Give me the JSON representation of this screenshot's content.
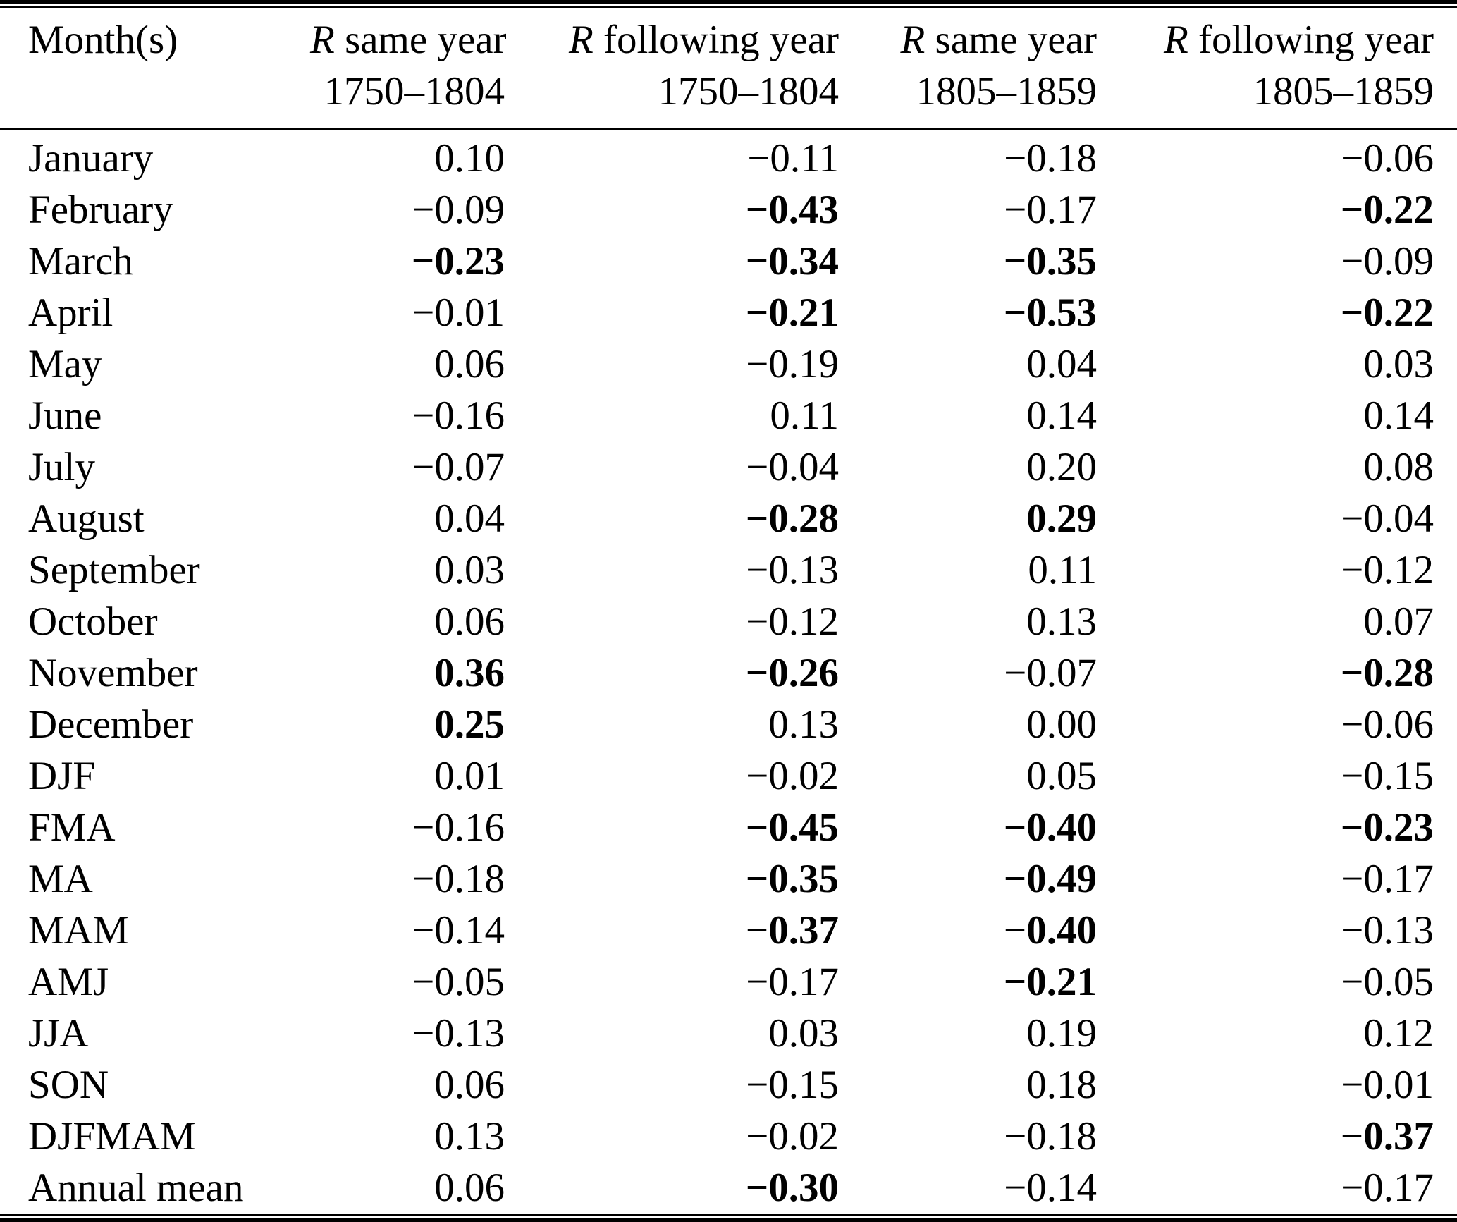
{
  "table": {
    "month_header": "Month(s)",
    "headers": [
      {
        "symbol": "R",
        "label": "same year",
        "period": "1750–1804"
      },
      {
        "symbol": "R",
        "label": "following year",
        "period": "1750–1804"
      },
      {
        "symbol": "R",
        "label": "same year",
        "period": "1805–1859"
      },
      {
        "symbol": "R",
        "label": "following year",
        "period": "1805–1859"
      }
    ],
    "rows": [
      {
        "label": "January",
        "values": [
          {
            "v": "0.10",
            "b": false
          },
          {
            "v": "−0.11",
            "b": false
          },
          {
            "v": "−0.18",
            "b": false
          },
          {
            "v": "−0.06",
            "b": false
          }
        ]
      },
      {
        "label": "February",
        "values": [
          {
            "v": "−0.09",
            "b": false
          },
          {
            "v": "−0.43",
            "b": true
          },
          {
            "v": "−0.17",
            "b": false
          },
          {
            "v": "−0.22",
            "b": true
          }
        ]
      },
      {
        "label": "March",
        "values": [
          {
            "v": "−0.23",
            "b": true
          },
          {
            "v": "−0.34",
            "b": true
          },
          {
            "v": "−0.35",
            "b": true
          },
          {
            "v": "−0.09",
            "b": false
          }
        ]
      },
      {
        "label": "April",
        "values": [
          {
            "v": "−0.01",
            "b": false
          },
          {
            "v": "−0.21",
            "b": true
          },
          {
            "v": "−0.53",
            "b": true
          },
          {
            "v": "−0.22",
            "b": true
          }
        ]
      },
      {
        "label": "May",
        "values": [
          {
            "v": "0.06",
            "b": false
          },
          {
            "v": "−0.19",
            "b": false
          },
          {
            "v": "0.04",
            "b": false
          },
          {
            "v": "0.03",
            "b": false
          }
        ]
      },
      {
        "label": "June",
        "values": [
          {
            "v": "−0.16",
            "b": false
          },
          {
            "v": "0.11",
            "b": false
          },
          {
            "v": "0.14",
            "b": false
          },
          {
            "v": "0.14",
            "b": false
          }
        ]
      },
      {
        "label": "July",
        "values": [
          {
            "v": "−0.07",
            "b": false
          },
          {
            "v": "−0.04",
            "b": false
          },
          {
            "v": "0.20",
            "b": false
          },
          {
            "v": "0.08",
            "b": false
          }
        ]
      },
      {
        "label": "August",
        "values": [
          {
            "v": "0.04",
            "b": false
          },
          {
            "v": "−0.28",
            "b": true
          },
          {
            "v": "0.29",
            "b": true
          },
          {
            "v": "−0.04",
            "b": false
          }
        ]
      },
      {
        "label": "September",
        "values": [
          {
            "v": "0.03",
            "b": false
          },
          {
            "v": "−0.13",
            "b": false
          },
          {
            "v": "0.11",
            "b": false
          },
          {
            "v": "−0.12",
            "b": false
          }
        ]
      },
      {
        "label": "October",
        "values": [
          {
            "v": "0.06",
            "b": false
          },
          {
            "v": "−0.12",
            "b": false
          },
          {
            "v": "0.13",
            "b": false
          },
          {
            "v": "0.07",
            "b": false
          }
        ]
      },
      {
        "label": "November",
        "values": [
          {
            "v": "0.36",
            "b": true
          },
          {
            "v": "−0.26",
            "b": true
          },
          {
            "v": "−0.07",
            "b": false
          },
          {
            "v": "−0.28",
            "b": true
          }
        ]
      },
      {
        "label": "December",
        "values": [
          {
            "v": "0.25",
            "b": true
          },
          {
            "v": "0.13",
            "b": false
          },
          {
            "v": "0.00",
            "b": false
          },
          {
            "v": "−0.06",
            "b": false
          }
        ]
      },
      {
        "label": "DJF",
        "values": [
          {
            "v": "0.01",
            "b": false
          },
          {
            "v": "−0.02",
            "b": false
          },
          {
            "v": "0.05",
            "b": false
          },
          {
            "v": "−0.15",
            "b": false
          }
        ]
      },
      {
        "label": "FMA",
        "values": [
          {
            "v": "−0.16",
            "b": false
          },
          {
            "v": "−0.45",
            "b": true
          },
          {
            "v": "−0.40",
            "b": true
          },
          {
            "v": "−0.23",
            "b": true
          }
        ]
      },
      {
        "label": "MA",
        "values": [
          {
            "v": "−0.18",
            "b": false
          },
          {
            "v": "−0.35",
            "b": true
          },
          {
            "v": "−0.49",
            "b": true
          },
          {
            "v": "−0.17",
            "b": false
          }
        ]
      },
      {
        "label": "MAM",
        "values": [
          {
            "v": "−0.14",
            "b": false
          },
          {
            "v": "−0.37",
            "b": true
          },
          {
            "v": "−0.40",
            "b": true
          },
          {
            "v": "−0.13",
            "b": false
          }
        ]
      },
      {
        "label": "AMJ",
        "values": [
          {
            "v": "−0.05",
            "b": false
          },
          {
            "v": "−0.17",
            "b": false
          },
          {
            "v": "−0.21",
            "b": true
          },
          {
            "v": "−0.05",
            "b": false
          }
        ]
      },
      {
        "label": "JJA",
        "values": [
          {
            "v": "−0.13",
            "b": false
          },
          {
            "v": "0.03",
            "b": false
          },
          {
            "v": "0.19",
            "b": false
          },
          {
            "v": "0.12",
            "b": false
          }
        ]
      },
      {
        "label": "SON",
        "values": [
          {
            "v": "0.06",
            "b": false
          },
          {
            "v": "−0.15",
            "b": false
          },
          {
            "v": "0.18",
            "b": false
          },
          {
            "v": "−0.01",
            "b": false
          }
        ]
      },
      {
        "label": "DJFMAM",
        "values": [
          {
            "v": "0.13",
            "b": false
          },
          {
            "v": "−0.02",
            "b": false
          },
          {
            "v": "−0.18",
            "b": false
          },
          {
            "v": "−0.37",
            "b": true
          }
        ]
      },
      {
        "label": "Annual mean",
        "values": [
          {
            "v": "0.06",
            "b": false
          },
          {
            "v": "−0.30",
            "b": true
          },
          {
            "v": "−0.14",
            "b": false
          },
          {
            "v": "−0.17",
            "b": false
          }
        ]
      }
    ],
    "colors": {
      "text": "#000000",
      "background": "#ffffff"
    }
  }
}
